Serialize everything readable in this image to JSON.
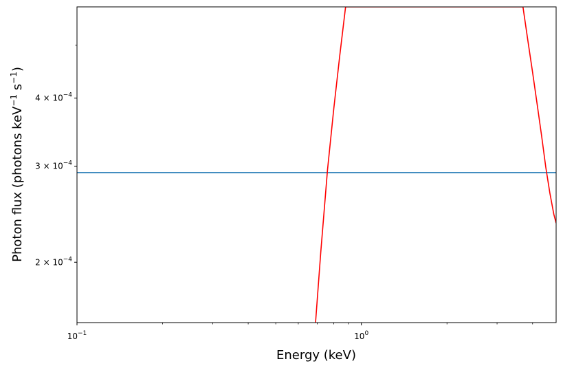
{
  "chart_data": {
    "type": "line",
    "title": "",
    "xlabel": "Energy (keV)",
    "ylabel_main": "Photon flux (photons keV",
    "ylabel_exp1": "−1",
    "ylabel_mid": " s",
    "ylabel_exp2": "−1",
    "ylabel_end": ")",
    "xscale": "log",
    "yscale": "log",
    "xlim": [
      0.1,
      4.84
    ],
    "ylim": [
      0.000155,
      0.000588
    ],
    "grid": false,
    "x_ticks": [
      {
        "value": 0.1,
        "base": "10",
        "exp": "−1"
      },
      {
        "value": 1.0,
        "base": "10",
        "exp": "0"
      }
    ],
    "y_ticks": [
      {
        "value": 0.0002,
        "mant": "2",
        "exp": "−4"
      },
      {
        "value": 0.0003,
        "mant": "3",
        "exp": "−4"
      },
      {
        "value": 0.0004,
        "mant": "4",
        "exp": "−4"
      }
    ],
    "series": [
      {
        "color": "#1f77b4",
        "x": [
          0.1,
          4.84
        ],
        "y": [
          0.000292,
          0.000292
        ]
      },
      {
        "color": "#ff0000",
        "x": [
          0.69,
          0.72,
          0.76,
          0.8,
          0.84,
          0.88,
          3.7,
          3.85,
          4.0,
          4.15,
          4.3,
          4.45,
          4.6,
          4.75,
          4.84
        ],
        "y": [
          0.000155,
          0.000209,
          0.000295,
          0.000383,
          0.00048,
          0.000588,
          0.000588,
          0.00051,
          0.000446,
          0.00039,
          0.000342,
          0.000299,
          0.000268,
          0.000245,
          0.000236
        ]
      }
    ]
  }
}
